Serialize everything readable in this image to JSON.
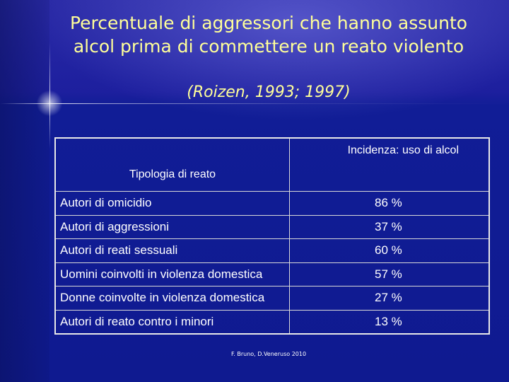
{
  "slide": {
    "title": "Percentuale di aggressori che hanno assunto alcol prima di commettere un reato violento",
    "subtitle": "(Roizen, 1993; 1997)",
    "footer": "F. Bruno, D.Veneruso 2010"
  },
  "table": {
    "headers": {
      "type": "Tipologia di reato",
      "incidence": "Incidenza: uso di alcol"
    },
    "rows": [
      {
        "type": "Autori di omicidio",
        "value": "86 %"
      },
      {
        "type": "Autori di aggressioni",
        "value": "37 %"
      },
      {
        "type": "Autori di reati sessuali",
        "value": "60 %"
      },
      {
        "type": "Uomini coinvolti in violenza domestica",
        "value": "57 %"
      },
      {
        "type": "Donne coinvolte in violenza domestica",
        "value": "27 %"
      },
      {
        "type": "Autori di reato contro i minori",
        "value": "13 %"
      }
    ]
  },
  "colors": {
    "background": "#0f1a8c",
    "title": "#ffff99",
    "text": "#ffffff"
  }
}
